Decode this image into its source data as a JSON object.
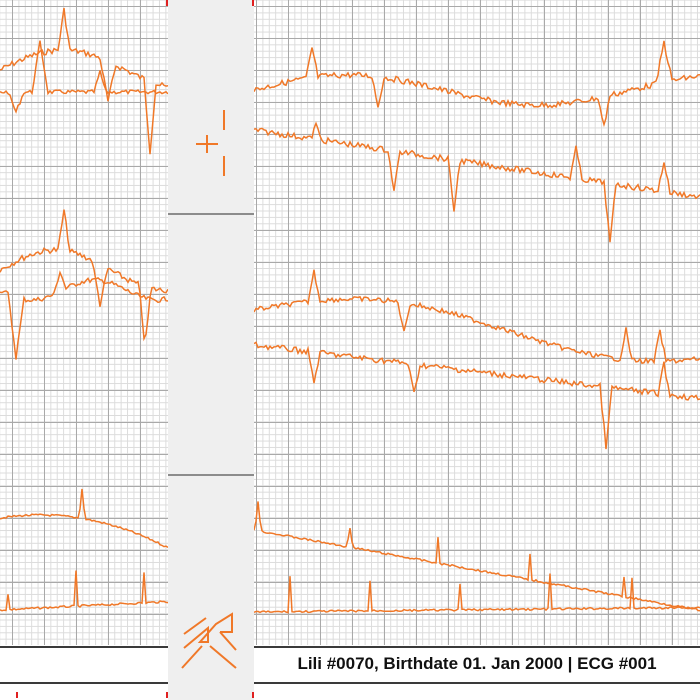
{
  "colors": {
    "trace": "#f07828",
    "grid_major": "#a9a9a9",
    "grid_minor": "#dcdcdc",
    "marker": "#e02020"
  },
  "icons": {
    "calibration": "calibration-marker-icon",
    "logo": "ecg-logo-icon"
  },
  "footer": {
    "patient_label": "Lili #0070, Birthdate 01. Jan 2000 | ECG #001"
  }
}
